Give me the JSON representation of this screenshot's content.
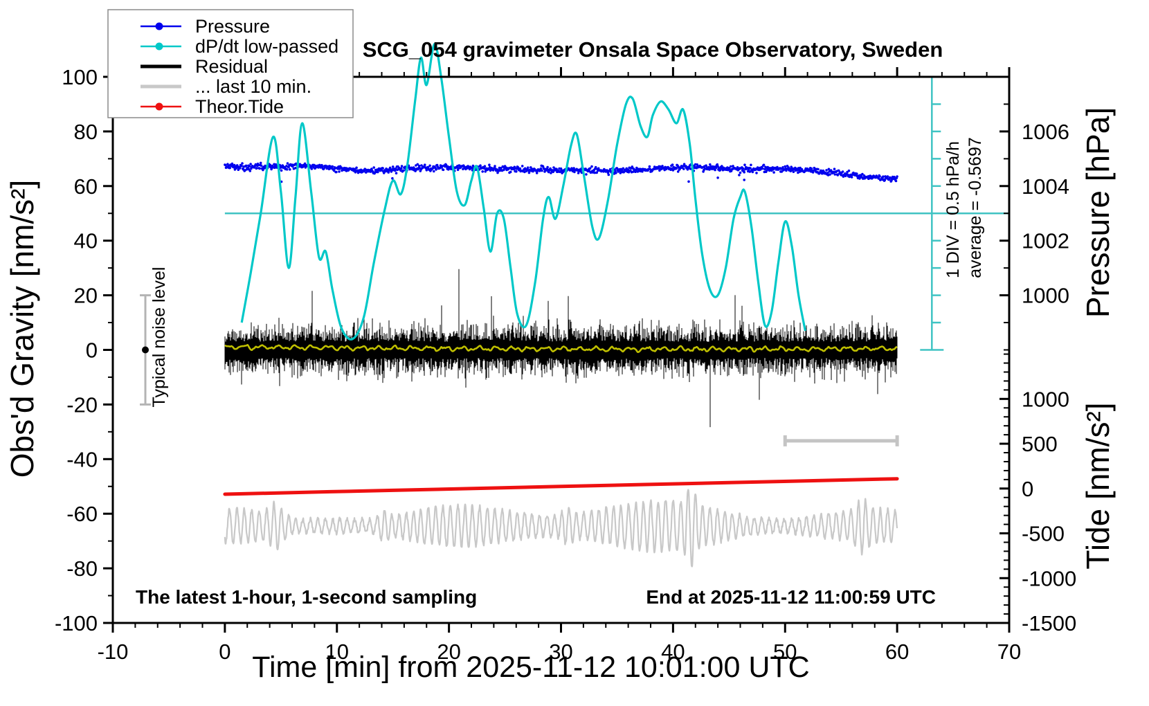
{
  "title": "SCG_054 gravimeter Onsala Space Observatory, Sweden",
  "legend": {
    "items": [
      {
        "label": "Pressure",
        "color": "#0000ee",
        "marker": "dot-line"
      },
      {
        "label": "dP/dt low-passed",
        "color": "#00c8c8",
        "marker": "dot-line"
      },
      {
        "label": "Residual",
        "color": "#000000",
        "marker": "thick-line"
      },
      {
        "label": "... last 10 min.",
        "color": "#c8c8c8",
        "marker": "thick-line"
      },
      {
        "label": "Theor.Tide",
        "color": "#ee1111",
        "marker": "dot-line"
      }
    ]
  },
  "annotations": {
    "xlabel": "Time [min] from 2025-11-12 10:01:00 UTC",
    "ylabel_left": "Obs'd Gravity [nm/s²]",
    "ylabel_pressure": "Pressure [hPa]",
    "ylabel_tide": "Tide [nm/s²]",
    "note_sampling": "The latest 1-hour, 1-second sampling",
    "note_end": "End at 2025-11-12 11:00:59 UTC",
    "note_div": "1 DIV = 0.5 hPa/h",
    "note_avg": "average = -0.5697",
    "note_noise": "Typical noise level"
  },
  "chart_data": {
    "type": "line",
    "title": "SCG_054 gravimeter Onsala Space Observatory, Sweden",
    "xlabel": "Time [min] from 2025-11-12 10:01:00 UTC",
    "axes": {
      "time_min": {
        "min": -10,
        "max": 70,
        "major": 10,
        "minor": 2,
        "major_labels": [
          "-10",
          "0",
          "10",
          "20",
          "30",
          "40",
          "50",
          "60",
          "70"
        ]
      },
      "gravity_left": {
        "label": "Obs'd Gravity [nm/s²]",
        "min": -100,
        "max": 100,
        "major": 20,
        "minor": 10,
        "major_labels": [
          "-100",
          "-80",
          "-60",
          "-40",
          "-20",
          "0",
          "20",
          "40",
          "60",
          "80",
          "100"
        ]
      },
      "pressure_right": {
        "label": "Pressure [hPa]",
        "labeled_ticks": [
          1006,
          1004,
          1002,
          1000
        ],
        "minor_step_hPa": 1,
        "minor_range": [
          998,
          1007
        ],
        "mapping": "1004 hPa at gravity 60, 1 hPa per 10 gravity units"
      },
      "tide_right": {
        "label": "Tide [nm/s²]",
        "labeled_ticks": [
          1000,
          500,
          0,
          -500,
          -1000,
          -1500
        ],
        "minor_step": 100,
        "range": [
          -1500,
          1500
        ],
        "mapping": "tide 0 at gravity -50.6, 500 tide units per 16.55 gravity units"
      }
    },
    "grid": false,
    "legend_position": "top-left inset box",
    "series": [
      {
        "name": "Pressure",
        "color": "#0000ee",
        "style": "dense scatter of 1-s dots around mean",
        "axis": "pressure_right (hPa)",
        "control_points": [
          [
            0,
            1004.7
          ],
          [
            2,
            1004.68
          ],
          [
            4,
            1004.7
          ],
          [
            6,
            1004.74
          ],
          [
            7,
            1004.76
          ],
          [
            8,
            1004.72
          ],
          [
            10,
            1004.63
          ],
          [
            12,
            1004.56
          ],
          [
            14,
            1004.6
          ],
          [
            16,
            1004.63
          ],
          [
            18,
            1004.65
          ],
          [
            20,
            1004.67
          ],
          [
            22,
            1004.68
          ],
          [
            24,
            1004.64
          ],
          [
            26,
            1004.62
          ],
          [
            28,
            1004.6
          ],
          [
            30,
            1004.59
          ],
          [
            32,
            1004.57
          ],
          [
            34,
            1004.55
          ],
          [
            36,
            1004.57
          ],
          [
            38,
            1004.62
          ],
          [
            40,
            1004.66
          ],
          [
            42,
            1004.7
          ],
          [
            44,
            1004.66
          ],
          [
            46,
            1004.63
          ],
          [
            48,
            1004.64
          ],
          [
            50,
            1004.62
          ],
          [
            52,
            1004.57
          ],
          [
            54,
            1004.5
          ],
          [
            56,
            1004.42
          ],
          [
            57,
            1004.35
          ],
          [
            58,
            1004.32
          ],
          [
            59,
            1004.28
          ],
          [
            60,
            1004.25
          ]
        ],
        "scatter_sigma_hPa": 0.06
      },
      {
        "name": "dP/dt low-passed",
        "color": "#00c8c8",
        "style": "smooth oscillating line, values in left-axis units (1 DIV = 0.5 hPa/h = 10 units)",
        "axis": "gravity_left units",
        "points": [
          [
            1.5,
            10
          ],
          [
            2.3,
            28
          ],
          [
            3.2,
            50
          ],
          [
            4.3,
            78
          ],
          [
            5.0,
            58
          ],
          [
            5.7,
            30
          ],
          [
            6.3,
            56
          ],
          [
            6.9,
            83
          ],
          [
            7.7,
            58
          ],
          [
            8.4,
            34
          ],
          [
            9.0,
            36
          ],
          [
            9.6,
            22
          ],
          [
            10.4,
            8
          ],
          [
            11.4,
            4
          ],
          [
            12.4,
            12
          ],
          [
            13.3,
            32
          ],
          [
            14.3,
            52
          ],
          [
            15.0,
            62
          ],
          [
            15.7,
            57
          ],
          [
            16.3,
            68
          ],
          [
            17.0,
            92
          ],
          [
            17.5,
            107
          ],
          [
            18.0,
            97
          ],
          [
            18.7,
            112
          ],
          [
            19.3,
            100
          ],
          [
            20.0,
            78
          ],
          [
            20.7,
            58
          ],
          [
            21.4,
            53
          ],
          [
            22.0,
            62
          ],
          [
            22.5,
            67
          ],
          [
            23.1,
            52
          ],
          [
            23.7,
            36
          ],
          [
            24.3,
            50
          ],
          [
            24.9,
            48
          ],
          [
            25.5,
            30
          ],
          [
            26.1,
            13
          ],
          [
            26.9,
            9
          ],
          [
            27.7,
            25
          ],
          [
            28.4,
            48
          ],
          [
            28.9,
            56
          ],
          [
            29.5,
            48
          ],
          [
            30.2,
            60
          ],
          [
            30.9,
            75
          ],
          [
            31.4,
            79
          ],
          [
            32.0,
            65
          ],
          [
            32.8,
            45
          ],
          [
            33.4,
            41
          ],
          [
            34.2,
            55
          ],
          [
            35.0,
            75
          ],
          [
            35.8,
            90
          ],
          [
            36.4,
            92
          ],
          [
            37.1,
            82
          ],
          [
            37.7,
            78
          ],
          [
            38.2,
            86
          ],
          [
            38.9,
            91
          ],
          [
            39.6,
            88
          ],
          [
            40.3,
            83
          ],
          [
            40.9,
            88
          ],
          [
            41.5,
            75
          ],
          [
            42.0,
            55
          ],
          [
            42.6,
            35
          ],
          [
            43.3,
            22
          ],
          [
            44.0,
            20
          ],
          [
            44.7,
            30
          ],
          [
            45.4,
            48
          ],
          [
            46.0,
            56
          ],
          [
            46.4,
            58
          ],
          [
            47.0,
            45
          ],
          [
            47.6,
            25
          ],
          [
            48.2,
            9
          ],
          [
            48.8,
            14
          ],
          [
            49.4,
            32
          ],
          [
            50.0,
            47
          ],
          [
            50.6,
            38
          ],
          [
            51.2,
            20
          ],
          [
            51.8,
            7
          ]
        ]
      },
      {
        "name": "Residual",
        "color": "#000000",
        "style": "dense 1-s noise band centered on 0",
        "axis": "gravity_left",
        "center": 0,
        "typical_half_amplitude": 12,
        "max_spike": 38,
        "time_range": [
          0,
          60
        ]
      },
      {
        "name": "Residual low-passed overlay",
        "color": "#bfbf00",
        "style": "thin wiggly line through residual band",
        "axis": "gravity_left",
        "approx_range": [
          -1,
          2
        ],
        "time_range": [
          0,
          60
        ]
      },
      {
        "name": "... last 10 min.",
        "color": "#c8c8c8",
        "style": "quasi-periodic microseism trace (last 10 min stretched over full width)",
        "axis": "gravity_left",
        "center": -64.5,
        "amplitude_range": [
          4,
          13
        ],
        "approx_period_min": 0.66,
        "deepest_spike": -88,
        "time_range": [
          0,
          60
        ]
      },
      {
        "name": "Theor.Tide",
        "color": "#ee1111",
        "style": "thick nearly straight rising line",
        "axis": "tide_right (nm/s²)",
        "points": [
          [
            0,
            -63
          ],
          [
            15,
            -20
          ],
          [
            30,
            23
          ],
          [
            45,
            66
          ],
          [
            60,
            109
          ]
        ]
      }
    ],
    "annotations": [
      {
        "type": "hline",
        "name": "dP/dt zero reference",
        "gravity_value": 50,
        "time_range": [
          0,
          70
        ],
        "color": "#3fc3c3"
      },
      {
        "type": "vscale",
        "name": "DIV scale bar",
        "time_position": 63.1,
        "gravity_range": [
          0,
          100
        ],
        "tick_every": 10,
        "color": "#3fc3c3",
        "label": "1 DIV = 0.5 hPa/h",
        "sublabel": "average = -0.5697"
      },
      {
        "type": "hbar",
        "name": "last-10-min extent bar",
        "time_range": [
          50,
          60
        ],
        "gravity_value": -33.3,
        "color": "#c4c4c4"
      },
      {
        "type": "errorbar",
        "name": "Typical noise level",
        "time_position": -7,
        "gravity_center": 0,
        "gravity_halfwidth": 20,
        "dot_color": "#000000",
        "bar_color": "#b4b4b4"
      },
      {
        "type": "text",
        "value": "The latest 1-hour, 1-second sampling",
        "corner": "bottom-left"
      },
      {
        "type": "text",
        "value": "End at 2025-11-12 11:00:59 UTC",
        "corner": "bottom-right"
      }
    ]
  }
}
